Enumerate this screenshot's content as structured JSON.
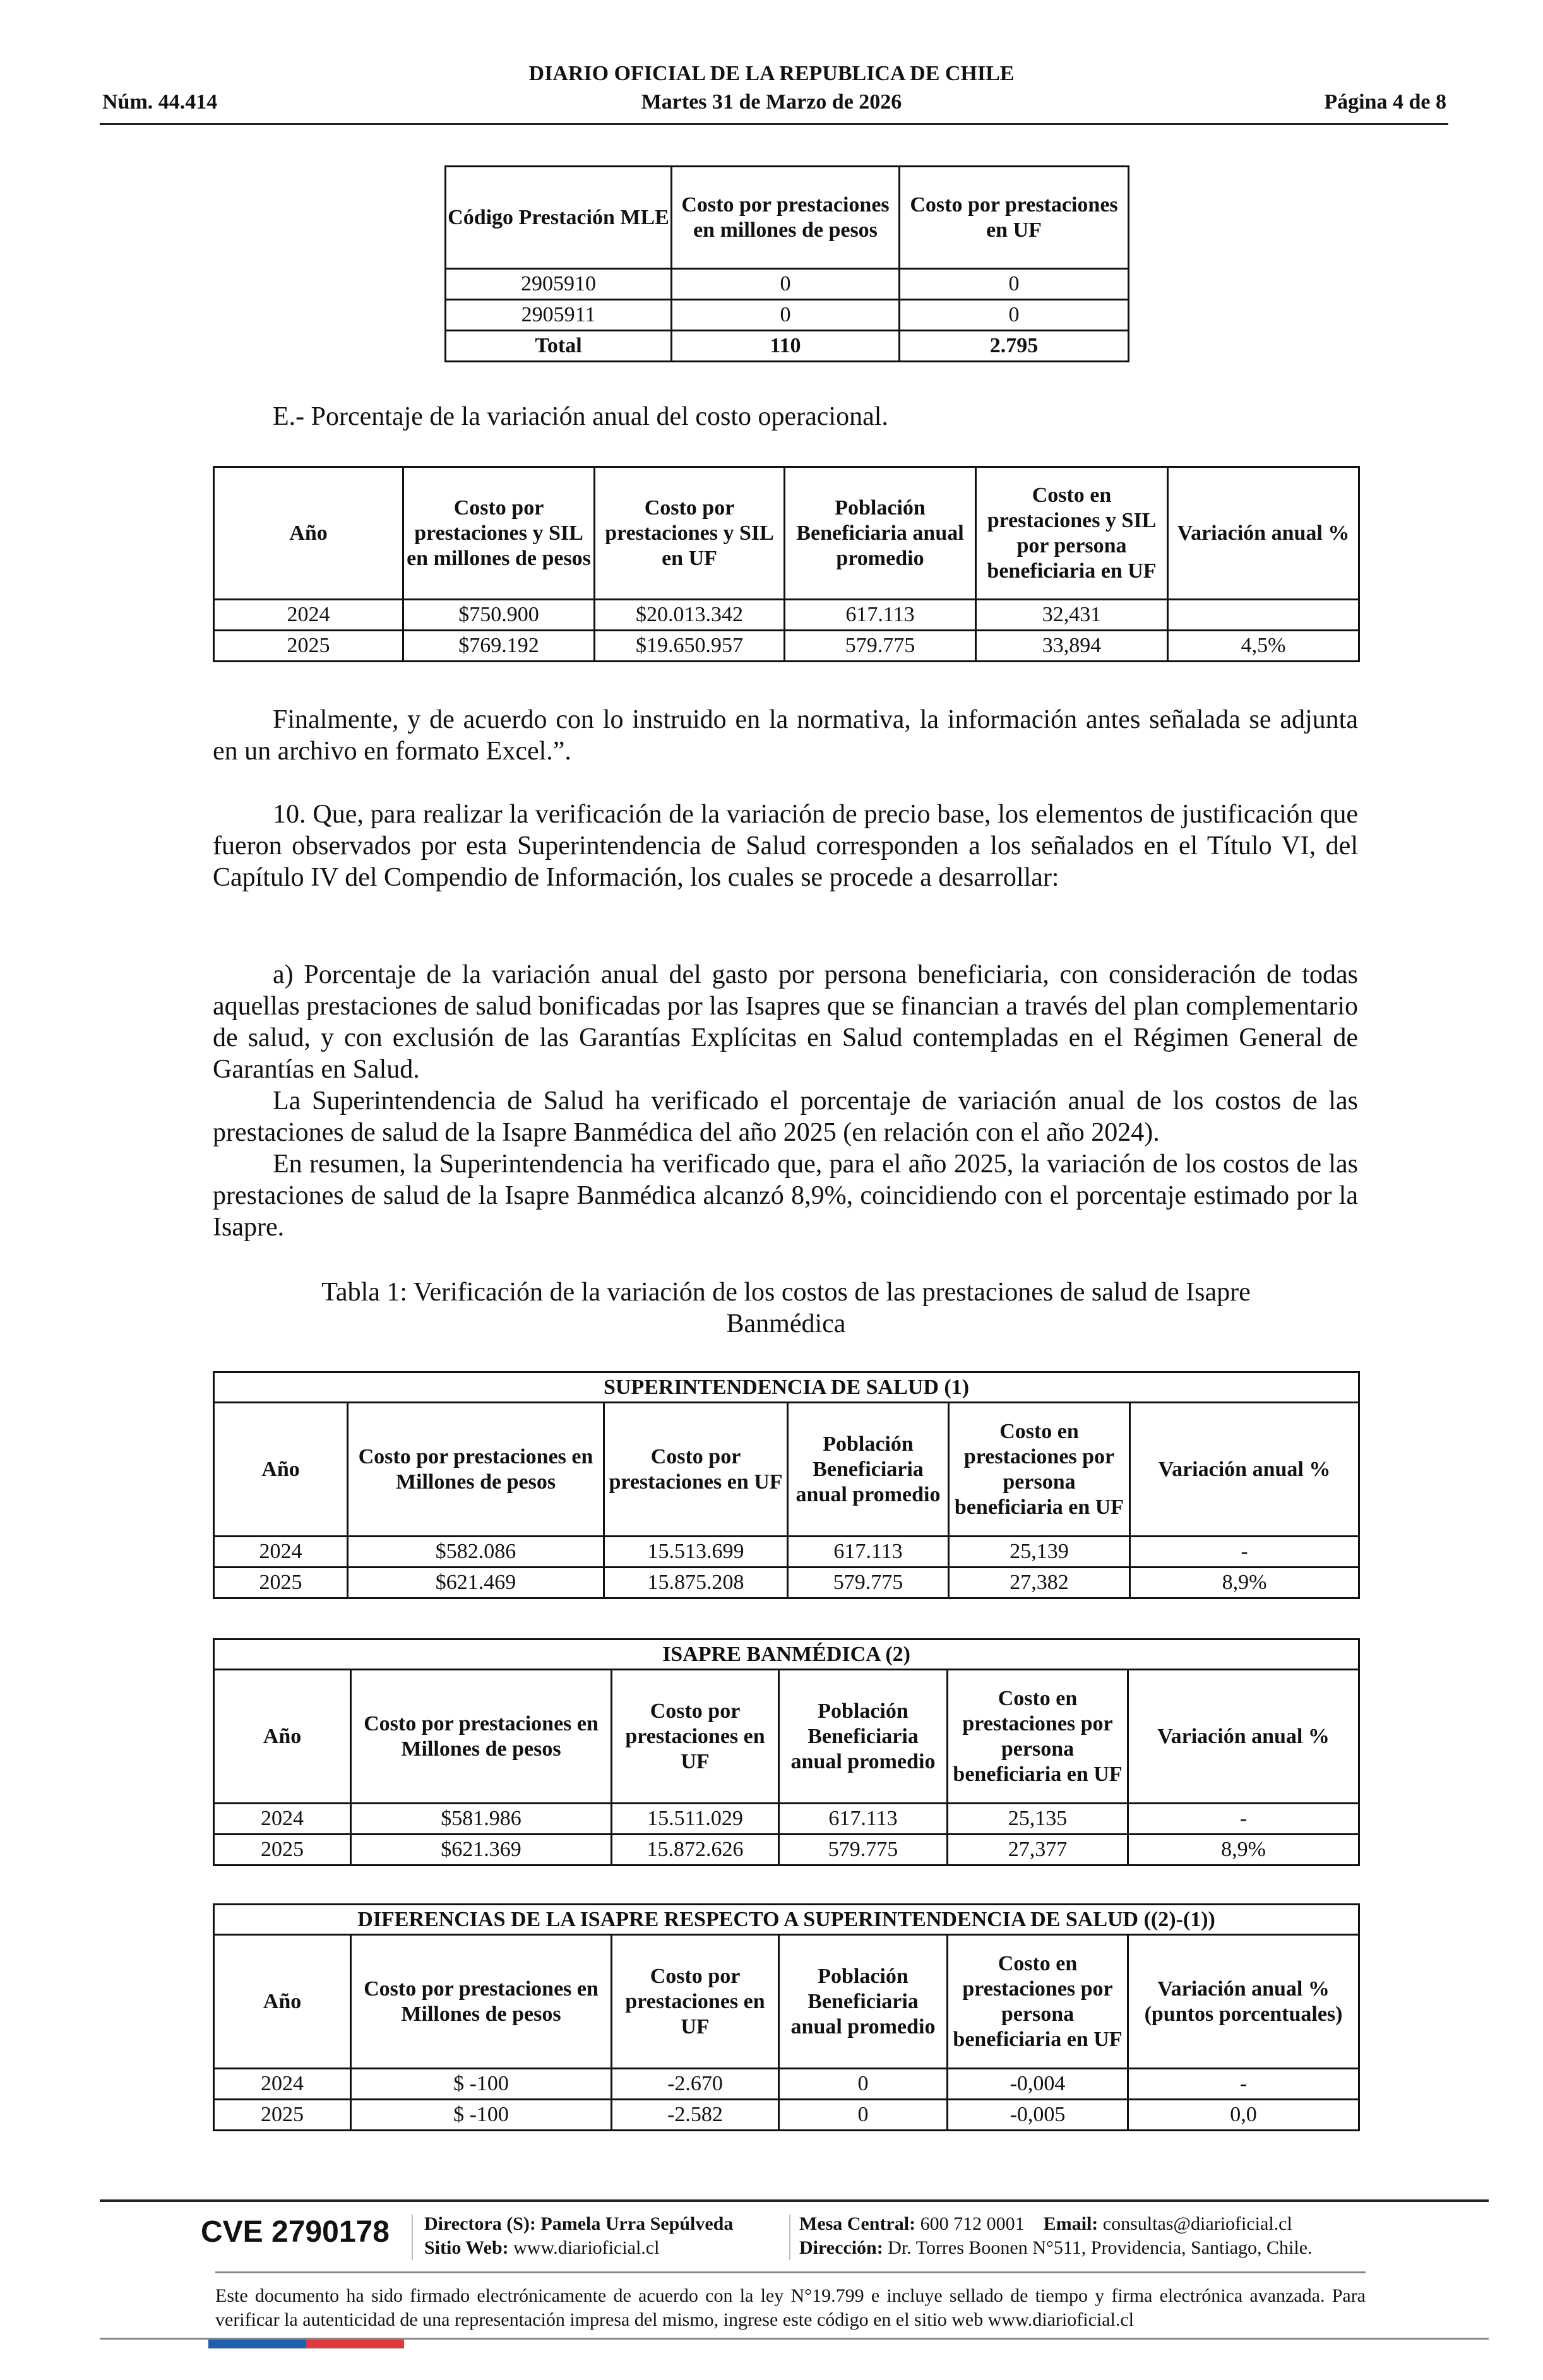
{
  "header": {
    "issue": "Núm. 44.414",
    "title": "DIARIO OFICIAL DE LA REPUBLICA DE CHILE",
    "date": "Martes 31 de Marzo de 2026",
    "page": "Página 4 de 8"
  },
  "table_mle": {
    "headers": [
      "Código Prestación MLE",
      "Costo por prestaciones en millones de pesos",
      "Costo por prestaciones en UF"
    ],
    "rows": [
      [
        "2905910",
        "0",
        "0"
      ],
      [
        "2905911",
        "0",
        "0"
      ]
    ],
    "total": [
      "Total",
      "110",
      "2.795"
    ]
  },
  "section_e": "E.- Porcentaje de la variación anual del costo operacional.",
  "table_e": {
    "headers": [
      "Año",
      "Costo por prestaciones y SIL en millones de pesos",
      "Costo por prestaciones y SIL en UF",
      "Población Beneficiaria anual promedio",
      "Costo en prestaciones y SIL por persona beneficiaria en UF",
      "Variación anual %"
    ],
    "rows": [
      [
        "2024",
        "$750.900",
        "$20.013.342",
        "617.113",
        "32,431",
        ""
      ],
      [
        "2025",
        "$769.192",
        "$19.650.957",
        "579.775",
        "33,894",
        "4,5%"
      ]
    ]
  },
  "paragraphs": {
    "finalmente": "Finalmente, y de acuerdo con lo instruido en la normativa, la información antes señalada se adjunta en un archivo en formato Excel.”.",
    "p10": "10. Que, para realizar la verificación de la variación de precio base, los elementos de justificación que fueron observados por esta Superintendencia de Salud corresponden a los señalados en el Título VI, del Capítulo IV del Compendio de Información, los cuales se procede a desarrollar:",
    "pa": "a) Porcentaje de la variación anual del gasto por persona beneficiaria, con consideración de todas aquellas prestaciones de salud bonificadas por las Isapres que se financian a través del plan complementario de salud, y con exclusión de las Garantías Explícitas en Salud contempladas en el Régimen General de Garantías en Salud.",
    "pb": "La Superintendencia de Salud ha verificado el porcentaje de variación anual de los costos de las prestaciones de salud de la Isapre Banmédica del año 2025 (en relación con el año 2024).",
    "pc": "En resumen, la Superintendencia ha verificado que, para el año 2025, la variación de los costos de las prestaciones de salud de la Isapre Banmédica alcanzó 8,9%, coincidiendo con el porcentaje estimado por la Isapre."
  },
  "caption": "Tabla 1: Verificación de la variación de los costos de las prestaciones de salud de Isapre Banmédica",
  "table_sis": {
    "title": "SUPERINTENDENCIA DE SALUD (1)",
    "headers": [
      "Año",
      "Costo por prestaciones en Millones de pesos",
      "Costo por prestaciones en UF",
      "Población Beneficiaria anual promedio",
      "Costo en prestaciones por persona beneficiaria en UF",
      "Variación anual %"
    ],
    "rows": [
      [
        "2024",
        "$582.086",
        "15.513.699",
        "617.113",
        "25,139",
        "-"
      ],
      [
        "2025",
        "$621.469",
        "15.875.208",
        "579.775",
        "27,382",
        "8,9%"
      ]
    ]
  },
  "table_isapre": {
    "title": "ISAPRE BANMÉDICA (2)",
    "headers": [
      "Año",
      "Costo por prestaciones en Millones de pesos",
      "Costo por prestaciones en UF",
      "Población Beneficiaria anual promedio",
      "Costo en prestaciones por persona beneficiaria en UF",
      "Variación anual %"
    ],
    "rows": [
      [
        "2024",
        "$581.986",
        "15.511.029",
        "617.113",
        "25,135",
        "-"
      ],
      [
        "2025",
        "$621.369",
        "15.872.626",
        "579.775",
        "27,377",
        "8,9%"
      ]
    ]
  },
  "table_diff": {
    "title": "DIFERENCIAS DE LA ISAPRE RESPECTO A SUPERINTENDENCIA DE SALUD ((2)-(1))",
    "headers": [
      "Año",
      "Costo por prestaciones en Millones de pesos",
      "Costo por prestaciones en UF",
      "Población Beneficiaria anual promedio",
      "Costo en prestaciones por persona beneficiaria en UF",
      "Variación anual % (puntos porcentuales)"
    ],
    "rows": [
      [
        "2024",
        "$ -100",
        "-2.670",
        "0",
        "-0,004",
        "-"
      ],
      [
        "2025",
        "$ -100",
        "-2.582",
        "0",
        "-0,005",
        "0,0"
      ]
    ]
  },
  "footer": {
    "cve": "CVE 2790178",
    "director_label": "Directora (S):",
    "director": "Pamela Urra Sepúlveda",
    "web_label": "Sitio Web:",
    "web": "www.diarioficial.cl",
    "mesa_label": "Mesa Central:",
    "mesa": "600 712 0001",
    "email_label": "Email:",
    "email": "consultas@diarioficial.cl",
    "address_label": "Dirección:",
    "address": "Dr. Torres Boonen N°511, Providencia, Santiago, Chile.",
    "notice": "Este documento ha sido firmado electrónicamente de acuerdo con la ley N°19.799 e incluye sellado de tiempo y firma electrónica avanzada. Para verificar la autenticidad de una representación impresa del mismo, ingrese este código en el sitio web www.diarioficial.cl",
    "flag_colors": [
      "#1f5fae",
      "#e03a3e"
    ]
  }
}
